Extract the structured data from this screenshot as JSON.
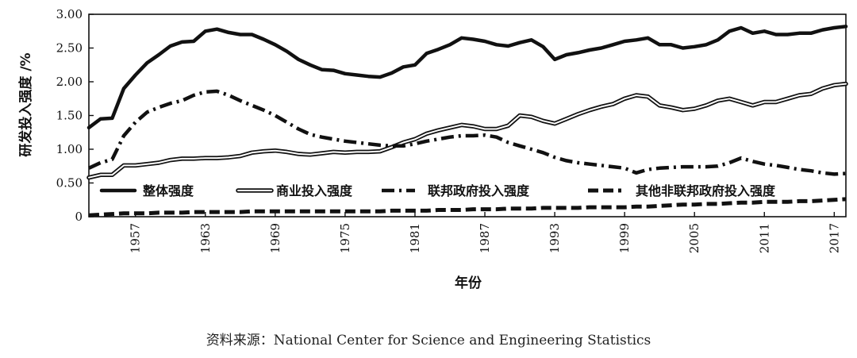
{
  "chart_data": {
    "type": "line",
    "title": "",
    "xlabel": "年份",
    "ylabel": "研发投入强度 /%",
    "xlim": [
      1953,
      2018
    ],
    "ylim": [
      0,
      3.0
    ],
    "yticks": [
      "0",
      "0.50",
      "1.00",
      "1.50",
      "2.00",
      "2.50",
      "3.00"
    ],
    "ytick_values": [
      0,
      0.5,
      1.0,
      1.5,
      2.0,
      2.5,
      3.0
    ],
    "xticks": [
      "1957",
      "1963",
      "1969",
      "1975",
      "1981",
      "1987",
      "1993",
      "1999",
      "2005",
      "2011",
      "2017"
    ],
    "xtick_values": [
      1957,
      1963,
      1969,
      1975,
      1981,
      1987,
      1993,
      1999,
      2005,
      2011,
      2017
    ],
    "x": [
      1953,
      1954,
      1955,
      1956,
      1957,
      1958,
      1959,
      1960,
      1961,
      1962,
      1963,
      1964,
      1965,
      1966,
      1967,
      1968,
      1969,
      1970,
      1971,
      1972,
      1973,
      1974,
      1975,
      1976,
      1977,
      1978,
      1979,
      1980,
      1981,
      1982,
      1983,
      1984,
      1985,
      1986,
      1987,
      1988,
      1989,
      1990,
      1991,
      1992,
      1993,
      1994,
      1995,
      1996,
      1997,
      1998,
      1999,
      2000,
      2001,
      2002,
      2003,
      2004,
      2005,
      2006,
      2007,
      2008,
      2009,
      2010,
      2011,
      2012,
      2013,
      2014,
      2015,
      2016,
      2017,
      2018
    ],
    "legend_position": "bottom-inside",
    "series": [
      {
        "name": "整体强度",
        "style": "thick-solid",
        "values": [
          1.32,
          1.45,
          1.46,
          1.9,
          2.1,
          2.28,
          2.4,
          2.53,
          2.59,
          2.6,
          2.75,
          2.78,
          2.73,
          2.7,
          2.7,
          2.63,
          2.55,
          2.45,
          2.33,
          2.25,
          2.18,
          2.17,
          2.12,
          2.1,
          2.08,
          2.07,
          2.13,
          2.22,
          2.25,
          2.42,
          2.48,
          2.55,
          2.65,
          2.63,
          2.6,
          2.55,
          2.53,
          2.58,
          2.62,
          2.52,
          2.33,
          2.4,
          2.43,
          2.47,
          2.5,
          2.55,
          2.6,
          2.62,
          2.65,
          2.55,
          2.55,
          2.5,
          2.52,
          2.55,
          2.62,
          2.75,
          2.8,
          2.72,
          2.75,
          2.7,
          2.7,
          2.72,
          2.72,
          2.77,
          2.8,
          2.82
        ]
      },
      {
        "name": "商业投入强度",
        "style": "outlined",
        "values": [
          0.58,
          0.62,
          0.62,
          0.76,
          0.76,
          0.78,
          0.8,
          0.84,
          0.86,
          0.86,
          0.87,
          0.87,
          0.88,
          0.9,
          0.95,
          0.97,
          0.98,
          0.96,
          0.93,
          0.92,
          0.94,
          0.96,
          0.95,
          0.96,
          0.96,
          0.97,
          1.03,
          1.1,
          1.15,
          1.23,
          1.28,
          1.32,
          1.36,
          1.34,
          1.3,
          1.3,
          1.35,
          1.5,
          1.48,
          1.42,
          1.38,
          1.45,
          1.52,
          1.58,
          1.63,
          1.67,
          1.75,
          1.8,
          1.78,
          1.65,
          1.62,
          1.58,
          1.6,
          1.65,
          1.72,
          1.75,
          1.7,
          1.65,
          1.7,
          1.7,
          1.75,
          1.8,
          1.82,
          1.9,
          1.95,
          1.97
        ]
      },
      {
        "name": "联邦政府投入强度",
        "style": "dash-dot",
        "values": [
          0.72,
          0.8,
          0.85,
          1.2,
          1.4,
          1.55,
          1.62,
          1.68,
          1.72,
          1.8,
          1.85,
          1.86,
          1.8,
          1.72,
          1.65,
          1.58,
          1.5,
          1.4,
          1.3,
          1.22,
          1.18,
          1.15,
          1.12,
          1.1,
          1.08,
          1.06,
          1.05,
          1.05,
          1.08,
          1.12,
          1.15,
          1.18,
          1.2,
          1.2,
          1.21,
          1.18,
          1.1,
          1.05,
          1.0,
          0.95,
          0.88,
          0.83,
          0.8,
          0.78,
          0.76,
          0.74,
          0.72,
          0.65,
          0.7,
          0.72,
          0.73,
          0.74,
          0.74,
          0.74,
          0.75,
          0.8,
          0.87,
          0.82,
          0.78,
          0.76,
          0.73,
          0.7,
          0.68,
          0.65,
          0.63,
          0.64
        ]
      },
      {
        "name": "其他非联邦政府投入强度",
        "style": "thick-dashed",
        "values": [
          0.02,
          0.03,
          0.04,
          0.05,
          0.05,
          0.05,
          0.06,
          0.06,
          0.06,
          0.07,
          0.07,
          0.07,
          0.07,
          0.07,
          0.08,
          0.08,
          0.08,
          0.08,
          0.08,
          0.08,
          0.08,
          0.08,
          0.08,
          0.08,
          0.08,
          0.08,
          0.09,
          0.09,
          0.09,
          0.09,
          0.1,
          0.1,
          0.1,
          0.11,
          0.11,
          0.11,
          0.12,
          0.12,
          0.12,
          0.13,
          0.13,
          0.13,
          0.13,
          0.14,
          0.14,
          0.14,
          0.14,
          0.15,
          0.15,
          0.16,
          0.17,
          0.18,
          0.18,
          0.19,
          0.19,
          0.2,
          0.21,
          0.21,
          0.22,
          0.22,
          0.22,
          0.23,
          0.23,
          0.24,
          0.25,
          0.26
        ]
      }
    ]
  },
  "source_text": "资料来源：National Center for Science and Engineering Statistics"
}
